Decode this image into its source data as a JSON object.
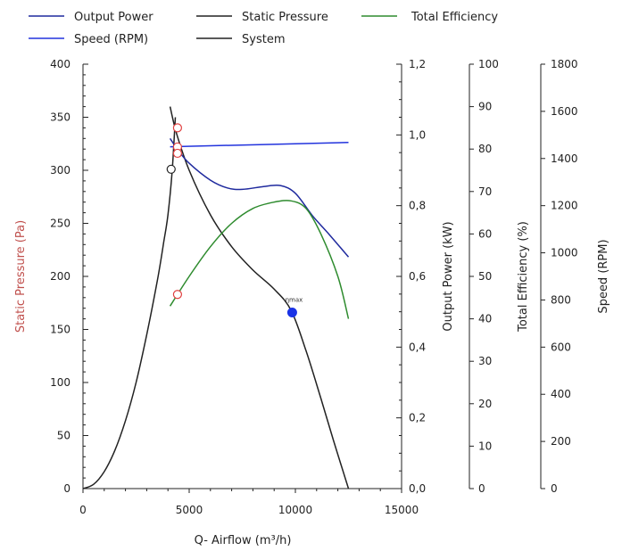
{
  "chart_data": {
    "type": "line",
    "legend": [
      {
        "name": "Output Power",
        "color": "#1f2a9e"
      },
      {
        "name": "Static Pressure",
        "color": "#222222"
      },
      {
        "name": "Total Efficiency",
        "color": "#2e8b2e"
      },
      {
        "name": "Speed (RPM)",
        "color": "#2233dd"
      },
      {
        "name": "System",
        "color": "#222222"
      }
    ],
    "legend_placement": "top",
    "x_axis": {
      "label": "Q- Airflow (m³/h)",
      "range": [
        0,
        15000
      ],
      "ticks": [
        0,
        5000,
        10000,
        15000
      ],
      "tick_labels": [
        "0",
        "5000",
        "10000",
        "15000"
      ]
    },
    "y_axes": {
      "static_pressure": {
        "label": "Static Pressure (Pa)",
        "label_color": "#c0504d",
        "range": [
          0,
          400
        ],
        "ticks": [
          0,
          50,
          100,
          150,
          200,
          250,
          300,
          350,
          400
        ],
        "tick_labels": [
          "0",
          "50",
          "100",
          "150",
          "200",
          "250",
          "300",
          "350",
          "400"
        ]
      },
      "output_power": {
        "label": "Output Power (kW)",
        "range": [
          0,
          1.2
        ],
        "ticks": [
          0,
          0.2,
          0.4,
          0.6,
          0.8,
          1.0,
          1.2
        ],
        "tick_labels": [
          "0,0",
          "0,2",
          "0,4",
          "0,6",
          "0,8",
          "1,0",
          "1,2"
        ]
      },
      "total_efficiency": {
        "label": "Total Efficiency (%)",
        "range": [
          0,
          100
        ],
        "ticks": [
          0,
          10,
          20,
          30,
          40,
          50,
          60,
          70,
          80,
          90,
          100
        ],
        "tick_labels": [
          "0",
          "10",
          "20",
          "30",
          "40",
          "50",
          "60",
          "70",
          "80",
          "90",
          "100"
        ]
      },
      "speed": {
        "label": "Speed (RPM)",
        "range": [
          0,
          1800
        ],
        "ticks": [
          0,
          200,
          400,
          600,
          800,
          1000,
          1200,
          1400,
          1600,
          1800
        ],
        "tick_labels": [
          "0",
          "200",
          "400",
          "600",
          "800",
          "1000",
          "1200",
          "1400",
          "1600",
          "1800"
        ]
      }
    },
    "series": [
      {
        "name": "Static Pressure",
        "axis": "static_pressure",
        "color": "#222222",
        "x": [
          4100,
          4400,
          5000,
          6000,
          7000,
          8000,
          9000,
          9800,
          10500,
          11200,
          11800,
          12500
        ],
        "y": [
          360,
          335,
          300,
          258,
          228,
          206,
          188,
          168,
          130,
          85,
          45,
          0
        ]
      },
      {
        "name": "System",
        "axis": "static_pressure",
        "color": "#222222",
        "x": [
          0,
          500,
          1000,
          1500,
          2000,
          2500,
          3000,
          3500,
          3800,
          4000,
          4200,
          4350
        ],
        "y": [
          0,
          4,
          16,
          36,
          64,
          100,
          145,
          196,
          232,
          258,
          300,
          350
        ]
      },
      {
        "name": "Output Power",
        "axis": "output_power",
        "color": "#1f2a9e",
        "x": [
          4100,
          4500,
          5000,
          6000,
          6800,
          7500,
          8500,
          9300,
          10000,
          10800,
          11600,
          12500
        ],
        "y": [
          0.99,
          0.955,
          0.92,
          0.872,
          0.85,
          0.846,
          0.854,
          0.857,
          0.835,
          0.772,
          0.718,
          0.655
        ]
      },
      {
        "name": "Total Efficiency",
        "axis": "total_efficiency",
        "color": "#2e8b2e",
        "x": [
          4100,
          5000,
          6000,
          7000,
          8000,
          9000,
          9800,
          10500,
          11200,
          12000,
          12500
        ],
        "y": [
          43,
          50,
          57,
          62.5,
          66,
          67.5,
          67.8,
          66,
          60,
          50,
          40
        ]
      },
      {
        "name": "Speed (RPM)",
        "axis": "speed",
        "color": "#2233dd",
        "x": [
          4100,
          12500
        ],
        "y": [
          1450,
          1468
        ]
      }
    ],
    "markers": [
      {
        "kind": "open-circle",
        "color": "#e04040",
        "axis": "static_pressure",
        "x": 4450,
        "y": 340
      },
      {
        "kind": "open-circle",
        "color": "#e04040",
        "axis": "static_pressure",
        "x": 4450,
        "y": 322
      },
      {
        "kind": "open-circle",
        "color": "#e04040",
        "axis": "static_pressure",
        "x": 4450,
        "y": 316
      },
      {
        "kind": "open-circle",
        "color": "#e04040",
        "axis": "static_pressure",
        "x": 4450,
        "y": 183
      },
      {
        "kind": "open-circle",
        "color": "#222222",
        "axis": "static_pressure",
        "x": 4150,
        "y": 301
      },
      {
        "kind": "filled-circle",
        "color": "#1a33e6",
        "axis": "static_pressure",
        "x": 9850,
        "y": 166,
        "label": "ηmax"
      }
    ]
  }
}
